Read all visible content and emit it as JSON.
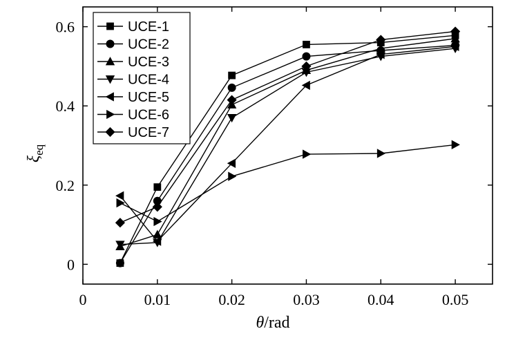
{
  "chart_data": {
    "type": "line",
    "title": "",
    "xlabel_symbol": "θ",
    "xlabel_unit": "/rad",
    "ylabel_symbol": "ξ",
    "ylabel_sub": "eq",
    "xlim": [
      0,
      0.055
    ],
    "ylim": [
      -0.05,
      0.65
    ],
    "xticks": [
      0,
      0.01,
      0.02,
      0.03,
      0.04,
      0.05
    ],
    "xtick_labels": [
      "0",
      "0.01",
      "0.02",
      "0.03",
      "0.04",
      "0.05"
    ],
    "yticks": [
      0,
      0.2,
      0.4,
      0.6
    ],
    "ytick_labels": [
      "0",
      "0.2",
      "0.4",
      "0.6"
    ],
    "x": [
      0.005,
      0.01,
      0.02,
      0.03,
      0.04,
      0.05
    ],
    "legend_position": "top-left",
    "series": [
      {
        "name": "UCE-1",
        "marker": "square",
        "values": [
          0.003,
          0.195,
          0.477,
          0.555,
          0.56,
          0.578
        ]
      },
      {
        "name": "UCE-2",
        "marker": "circle",
        "values": [
          0.003,
          0.16,
          0.446,
          0.525,
          0.54,
          0.553
        ]
      },
      {
        "name": "UCE-3",
        "marker": "triangle-up",
        "values": [
          0.045,
          0.075,
          0.403,
          0.49,
          0.545,
          0.57
        ]
      },
      {
        "name": "UCE-4",
        "marker": "triangle-down",
        "values": [
          0.05,
          0.055,
          0.37,
          0.485,
          0.525,
          0.545
        ]
      },
      {
        "name": "UCE-5",
        "marker": "triangle-left",
        "values": [
          0.173,
          0.058,
          0.255,
          0.452,
          0.53,
          0.55
        ]
      },
      {
        "name": "UCE-6",
        "marker": "triangle-right",
        "values": [
          0.155,
          0.108,
          0.222,
          0.278,
          0.28,
          0.302
        ]
      },
      {
        "name": "UCE-7",
        "marker": "diamond",
        "values": [
          0.105,
          0.145,
          0.415,
          0.5,
          0.567,
          0.588
        ]
      }
    ]
  }
}
